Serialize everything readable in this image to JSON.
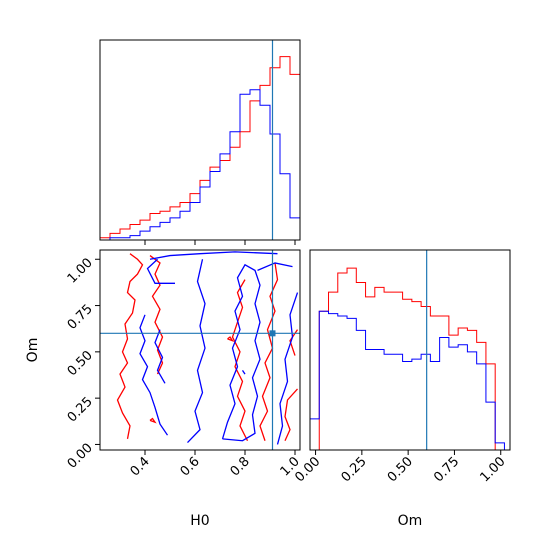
{
  "chart_data": {
    "type": "corner",
    "parameters": [
      "H0",
      "Om"
    ],
    "truth": {
      "H0": 0.91,
      "Om": 0.6
    },
    "truth_color": "#1f77b4",
    "series": [
      {
        "color": "#ff0000"
      },
      {
        "color": "#0000ff"
      }
    ],
    "panels": {
      "hist_H0": {
        "xlim": [
          0.22,
          1.02
        ],
        "bin_edges": [
          0.22,
          0.26,
          0.3,
          0.34,
          0.38,
          0.42,
          0.46,
          0.5,
          0.54,
          0.58,
          0.62,
          0.66,
          0.7,
          0.74,
          0.78,
          0.82,
          0.86,
          0.9,
          0.94,
          0.98,
          1.02
        ],
        "red": [
          0.01,
          0.03,
          0.05,
          0.07,
          0.09,
          0.12,
          0.13,
          0.15,
          0.17,
          0.21,
          0.27,
          0.33,
          0.36,
          0.42,
          0.49,
          0.63,
          0.7,
          0.78,
          0.83,
          0.75
        ],
        "blue": [
          0.0,
          0.01,
          0.01,
          0.02,
          0.04,
          0.06,
          0.08,
          0.1,
          0.13,
          0.17,
          0.24,
          0.31,
          0.39,
          0.49,
          0.66,
          0.68,
          0.61,
          0.48,
          0.3,
          0.1
        ],
        "xticks": [
          0.4,
          0.6,
          0.8,
          1.0
        ]
      },
      "hist_Om": {
        "xlim": [
          -0.03,
          1.05
        ],
        "xticks": [
          0.0,
          0.25,
          0.5,
          0.75,
          1.0
        ],
        "xtick_labels": [
          "0.00",
          "0.25",
          "0.50",
          "0.75",
          "1.00"
        ],
        "bin_edges": [
          -0.03,
          0.02,
          0.07,
          0.12,
          0.17,
          0.22,
          0.27,
          0.32,
          0.37,
          0.42,
          0.47,
          0.52,
          0.57,
          0.62,
          0.67,
          0.72,
          0.77,
          0.82,
          0.87,
          0.92,
          0.97,
          1.02
        ],
        "red": [
          0.0,
          0.58,
          0.66,
          0.74,
          0.76,
          0.7,
          0.64,
          0.68,
          0.66,
          0.66,
          0.63,
          0.62,
          0.6,
          0.56,
          0.56,
          0.48,
          0.51,
          0.5,
          0.45,
          0.36,
          0.0
        ],
        "blue": [
          0.13,
          0.58,
          0.57,
          0.56,
          0.55,
          0.5,
          0.42,
          0.42,
          0.4,
          0.4,
          0.37,
          0.38,
          0.4,
          0.37,
          0.47,
          0.43,
          0.44,
          0.41,
          0.36,
          0.2,
          0.03
        ]
      },
      "scatter_H0_Om": {
        "xlim": [
          0.22,
          1.02
        ],
        "ylim": [
          -0.03,
          1.05
        ],
        "xticks": [
          0.4,
          0.6,
          0.8,
          1.0
        ],
        "yticks": [
          0.0,
          0.25,
          0.5,
          0.75,
          1.0
        ],
        "ytick_labels": [
          "0.00",
          "0.25",
          "0.50",
          "0.75",
          "1.00"
        ],
        "xlabel": "H0",
        "ylabel": "Om",
        "red_contours": [
          [
            [
              0.34,
              1.03
            ],
            [
              0.37,
              1.0
            ],
            [
              0.39,
              0.97
            ],
            [
              0.37,
              0.92
            ],
            [
              0.34,
              0.88
            ],
            [
              0.33,
              0.82
            ],
            [
              0.36,
              0.78
            ],
            [
              0.35,
              0.71
            ],
            [
              0.32,
              0.65
            ],
            [
              0.33,
              0.57
            ],
            [
              0.31,
              0.5
            ],
            [
              0.33,
              0.44
            ],
            [
              0.3,
              0.38
            ],
            [
              0.32,
              0.31
            ],
            [
              0.29,
              0.24
            ],
            [
              0.31,
              0.17
            ],
            [
              0.34,
              0.1
            ],
            [
              0.33,
              0.03
            ]
          ],
          [
            [
              0.42,
              1.02
            ],
            [
              0.46,
              0.98
            ],
            [
              0.44,
              0.92
            ],
            [
              0.46,
              0.86
            ],
            [
              0.43,
              0.8
            ],
            [
              0.46,
              0.73
            ],
            [
              0.44,
              0.66
            ],
            [
              0.47,
              0.58
            ],
            [
              0.45,
              0.51
            ],
            [
              0.47,
              0.44
            ],
            [
              0.45,
              0.38
            ]
          ],
          [
            [
              0.81,
              0.02
            ],
            [
              0.78,
              0.1
            ],
            [
              0.8,
              0.18
            ],
            [
              0.77,
              0.26
            ],
            [
              0.79,
              0.34
            ],
            [
              0.76,
              0.42
            ],
            [
              0.78,
              0.5
            ],
            [
              0.75,
              0.58
            ],
            [
              0.77,
              0.66
            ],
            [
              0.79,
              0.74
            ],
            [
              0.77,
              0.82
            ],
            [
              0.8,
              0.89
            ]
          ],
          [
            [
              0.88,
              0.02
            ],
            [
              0.86,
              0.1
            ],
            [
              0.89,
              0.18
            ],
            [
              0.87,
              0.26
            ],
            [
              0.9,
              0.36
            ],
            [
              0.88,
              0.44
            ],
            [
              0.91,
              0.52
            ],
            [
              0.89,
              0.62
            ],
            [
              0.92,
              0.72
            ],
            [
              0.9,
              0.8
            ],
            [
              0.93,
              0.89
            ],
            [
              0.92,
              0.98
            ]
          ],
          [
            [
              1.01,
              0.3
            ],
            [
              0.97,
              0.24
            ],
            [
              0.96,
              0.15
            ],
            [
              0.98,
              0.08
            ],
            [
              0.96,
              0.02
            ]
          ],
          [
            [
              1.01,
              0.62
            ],
            [
              0.98,
              0.56
            ],
            [
              1.0,
              0.48
            ]
          ],
          [
            [
              0.42,
              0.13
            ],
            [
              0.44,
              0.12
            ],
            [
              0.43,
              0.14
            ],
            [
              0.42,
              0.13
            ]
          ],
          [
            [
              0.73,
              0.57
            ],
            [
              0.75,
              0.56
            ],
            [
              0.74,
              0.58
            ],
            [
              0.73,
              0.57
            ]
          ]
        ],
        "blue_contours": [
          [
            [
              0.42,
              1.0
            ],
            [
              0.5,
              1.02
            ],
            [
              0.62,
              1.03
            ],
            [
              0.76,
              1.04
            ],
            [
              0.93,
              1.03
            ]
          ],
          [
            [
              0.52,
              0.87
            ],
            [
              0.44,
              0.87
            ],
            [
              0.41,
              0.95
            ],
            [
              0.45,
              1.0
            ]
          ],
          [
            [
              0.4,
              0.7
            ],
            [
              0.38,
              0.63
            ],
            [
              0.4,
              0.56
            ],
            [
              0.38,
              0.49
            ],
            [
              0.41,
              0.42
            ],
            [
              0.39,
              0.35
            ],
            [
              0.42,
              0.28
            ],
            [
              0.44,
              0.2
            ],
            [
              0.46,
              0.11
            ],
            [
              0.49,
              0.05
            ]
          ],
          [
            [
              0.46,
              0.62
            ],
            [
              0.44,
              0.55
            ],
            [
              0.47,
              0.47
            ],
            [
              0.45,
              0.4
            ],
            [
              0.48,
              0.33
            ]
          ],
          [
            [
              0.57,
              0.01
            ],
            [
              0.62,
              0.08
            ],
            [
              0.6,
              0.18
            ],
            [
              0.63,
              0.28
            ],
            [
              0.61,
              0.4
            ],
            [
              0.64,
              0.52
            ],
            [
              0.62,
              0.64
            ],
            [
              0.64,
              0.76
            ],
            [
              0.61,
              0.88
            ],
            [
              0.63,
              1.0
            ]
          ],
          [
            [
              0.71,
              0.03
            ],
            [
              0.79,
              0.02
            ],
            [
              0.84,
              0.06
            ],
            [
              0.83,
              0.16
            ],
            [
              0.85,
              0.26
            ],
            [
              0.83,
              0.36
            ],
            [
              0.86,
              0.46
            ],
            [
              0.84,
              0.56
            ],
            [
              0.86,
              0.66
            ],
            [
              0.84,
              0.76
            ],
            [
              0.86,
              0.86
            ],
            [
              0.84,
              0.94
            ],
            [
              0.8,
              0.97
            ],
            [
              0.77,
              0.9
            ],
            [
              0.79,
              0.8
            ],
            [
              0.76,
              0.72
            ],
            [
              0.78,
              0.62
            ],
            [
              0.75,
              0.52
            ],
            [
              0.77,
              0.42
            ],
            [
              0.74,
              0.32
            ],
            [
              0.76,
              0.22
            ],
            [
              0.73,
              0.12
            ],
            [
              0.71,
              0.03
            ]
          ],
          [
            [
              0.93,
              0.0
            ],
            [
              0.95,
              0.1
            ],
            [
              0.94,
              0.22
            ],
            [
              0.97,
              0.34
            ],
            [
              0.96,
              0.46
            ],
            [
              0.99,
              0.58
            ],
            [
              0.98,
              0.7
            ],
            [
              1.01,
              0.82
            ]
          ],
          [
            [
              0.85,
              0.94
            ],
            [
              0.92,
              0.98
            ],
            [
              0.99,
              0.96
            ]
          ],
          [
            [
              0.79,
              0.4
            ],
            [
              0.8,
              0.38
            ]
          ],
          [
            [
              0.9,
              0.6
            ],
            [
              0.92,
              0.6
            ]
          ]
        ]
      }
    }
  }
}
